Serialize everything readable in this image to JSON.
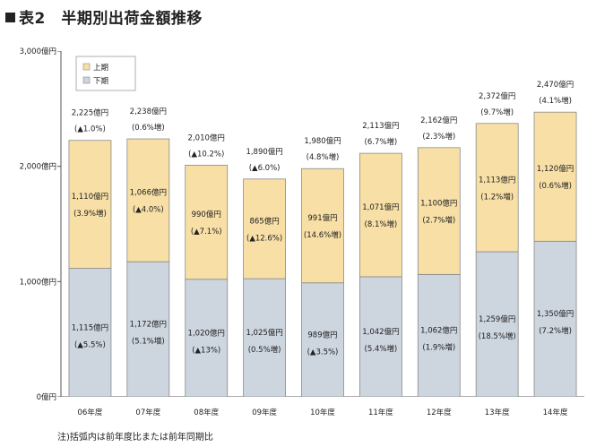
{
  "title": "表2　半期別出荷金額推移",
  "footnote": "注)括弧内は前年度比または前年同期比",
  "colors": {
    "upper": "#f7dfa6",
    "lower": "#cdd5df",
    "bar_edge": "#8a8a8a",
    "axis": "#555555",
    "text": "#222222"
  },
  "chart_data": {
    "type": "bar",
    "stacked": true,
    "title": "",
    "xlabel": "",
    "ylabel": "",
    "ylim": [
      0,
      3000
    ],
    "yticks": [
      0,
      1000,
      2000,
      3000
    ],
    "ytick_labels": [
      "0億円",
      "1,000億円",
      "2,000億円",
      "3,000億円"
    ],
    "grid": false,
    "legend_position": "top-left",
    "legend": [
      {
        "name": "上期",
        "color": "#f7dfa6"
      },
      {
        "name": "下期",
        "color": "#cdd5df"
      }
    ],
    "categories": [
      "06年度",
      "07年度",
      "08年度",
      "09年度",
      "10年度",
      "11年度",
      "12年度",
      "13年度",
      "14年度"
    ],
    "series": [
      {
        "name": "下期",
        "values": [
          1115,
          1172,
          1020,
          1025,
          989,
          1042,
          1062,
          1259,
          1350
        ],
        "labels": [
          "1,115億円",
          "1,172億円",
          "1,020億円",
          "1,025億円",
          "989億円",
          "1,042億円",
          "1,062億円",
          "1,259億円",
          "1,350億円"
        ],
        "changes": [
          "(▲5.5%)",
          "(5.1%増)",
          "(▲13%)",
          "(0.5%増)",
          "(▲3.5%)",
          "(5.4%増)",
          "(1.9%増)",
          "(18.5%増)",
          "(7.2%増)"
        ]
      },
      {
        "name": "上期",
        "values": [
          1110,
          1066,
          990,
          865,
          991,
          1071,
          1100,
          1113,
          1120
        ],
        "labels": [
          "1,110億円",
          "1,066億円",
          "990億円",
          "865億円",
          "991億円",
          "1,071億円",
          "1,100億円",
          "1,113億円",
          "1,120億円"
        ],
        "changes": [
          "(3.9%増)",
          "(▲4.0%)",
          "(▲7.1%)",
          "(▲12.6%)",
          "(14.6%増)",
          "(8.1%増)",
          "(2.7%増)",
          "(1.2%増)",
          "(0.6%増)"
        ]
      }
    ],
    "totals": [
      2225,
      2238,
      2010,
      1890,
      1980,
      2113,
      2162,
      2372,
      2470
    ],
    "total_labels": [
      "2,225億円",
      "2,238億円",
      "2,010億円",
      "1,890億円",
      "1,980億円",
      "2,113億円",
      "2,162億円",
      "2,372億円",
      "2,470億円"
    ],
    "total_changes": [
      "(▲1.0%)",
      "(0.6%増)",
      "(▲10.2%)",
      "(▲6.0%)",
      "(4.8%増)",
      "(6.7%増)",
      "(2.3%増)",
      "(9.7%増)",
      "(4.1%増)"
    ]
  }
}
